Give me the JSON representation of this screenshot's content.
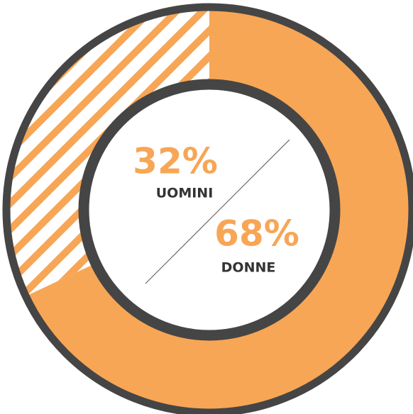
{
  "chart_data": {
    "type": "donut",
    "categories": [
      "UOMINI",
      "DONNE"
    ],
    "values": [
      32,
      68
    ],
    "value_labels": [
      "32%",
      "68%"
    ],
    "colors": [
      "#f7a656",
      "#f7a656"
    ],
    "patterns": [
      "hatch",
      "solid"
    ]
  }
}
